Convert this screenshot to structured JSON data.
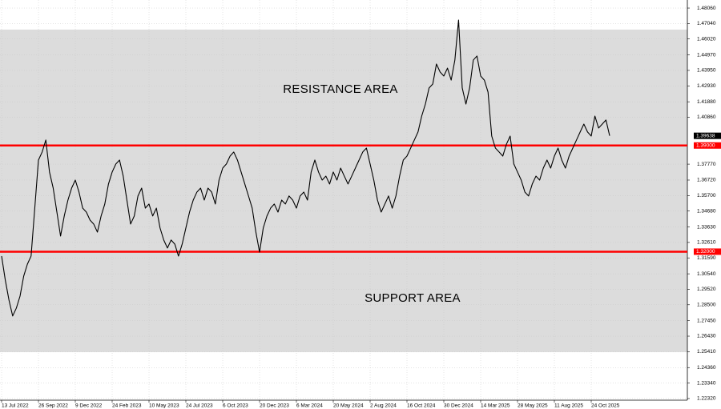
{
  "chart_data": {
    "type": "line",
    "annotations": [
      "RESISTANCE AREA",
      "SUPPORT AREA"
    ],
    "categories": [
      "13 Jul 2022",
      null,
      null,
      null,
      null,
      null,
      null,
      null,
      null,
      null,
      "26 Sep 2022",
      null,
      null,
      null,
      null,
      null,
      null,
      null,
      null,
      null,
      "9 Dec 2022",
      null,
      null,
      null,
      null,
      null,
      null,
      null,
      null,
      null,
      "24 Feb 2023",
      null,
      null,
      null,
      null,
      null,
      null,
      null,
      null,
      null,
      "10 May 2023",
      null,
      null,
      null,
      null,
      null,
      null,
      null,
      null,
      null,
      "24 Jul 2023",
      null,
      null,
      null,
      null,
      null,
      null,
      null,
      null,
      null,
      "6 Oct 2023",
      null,
      null,
      null,
      null,
      null,
      null,
      null,
      null,
      null,
      "20 Dec 2023",
      null,
      null,
      null,
      null,
      null,
      null,
      null,
      null,
      null,
      "6 Mar 2024",
      null,
      null,
      null,
      null,
      null,
      null,
      null,
      null,
      null,
      "20 May 2024",
      null,
      null,
      null,
      null,
      null,
      null,
      null,
      null,
      null,
      "2 Aug 2024",
      null,
      null,
      null,
      null,
      null,
      null,
      null,
      null,
      null,
      "16 Oct 2024",
      null,
      null,
      null,
      null,
      null,
      null,
      null,
      null,
      null,
      "30 Dec 2024",
      null,
      null,
      null,
      null,
      null,
      null,
      null,
      null,
      null,
      "14 Mar 2025",
      null,
      null,
      null,
      null,
      null,
      null,
      null,
      null,
      null,
      "28 May 2025",
      null,
      null,
      null,
      null,
      null,
      null,
      null,
      null,
      null,
      "11 Aug 2025",
      null,
      null,
      null,
      null,
      null,
      null,
      null,
      null,
      null,
      "24 Oct 2025",
      null,
      null,
      null,
      null,
      null
    ],
    "series": [
      {
        "color": "#000000",
        "values": [
          1.3171,
          1.3013,
          1.2881,
          1.2776,
          1.2828,
          1.2907,
          1.3039,
          1.3118,
          1.3171,
          1.3487,
          1.3804,
          1.3857,
          1.3936,
          1.3725,
          1.3619,
          1.3461,
          1.3303,
          1.3435,
          1.354,
          1.3619,
          1.3672,
          1.3593,
          1.3487,
          1.3461,
          1.3408,
          1.3382,
          1.3329,
          1.3435,
          1.3514,
          1.3646,
          1.3725,
          1.3778,
          1.3804,
          1.3698,
          1.354,
          1.3382,
          1.3435,
          1.3567,
          1.3619,
          1.3487,
          1.3514,
          1.3435,
          1.3487,
          1.3356,
          1.3277,
          1.3224,
          1.3277,
          1.325,
          1.3171,
          1.325,
          1.3356,
          1.3461,
          1.354,
          1.3593,
          1.3619,
          1.354,
          1.3619,
          1.3593,
          1.3514,
          1.3672,
          1.3751,
          1.3778,
          1.383,
          1.3857,
          1.3804,
          1.3725,
          1.3646,
          1.3567,
          1.3487,
          1.3329,
          1.3197,
          1.3356,
          1.3435,
          1.3487,
          1.3514,
          1.3461,
          1.354,
          1.3514,
          1.3567,
          1.354,
          1.3487,
          1.3567,
          1.3593,
          1.354,
          1.3725,
          1.3804,
          1.3725,
          1.3672,
          1.3698,
          1.3646,
          1.3725,
          1.3672,
          1.3751,
          1.3698,
          1.3646,
          1.3698,
          1.3751,
          1.3804,
          1.3857,
          1.3883,
          1.3778,
          1.3672,
          1.354,
          1.3461,
          1.3514,
          1.3567,
          1.3487,
          1.3567,
          1.3698,
          1.3804,
          1.383,
          1.3883,
          1.3936,
          1.3989,
          1.4094,
          1.4173,
          1.4279,
          1.4305,
          1.4437,
          1.4384,
          1.4358,
          1.441,
          1.4331,
          1.4463,
          1.4727,
          1.4279,
          1.4173,
          1.4279,
          1.4463,
          1.449,
          1.4358,
          1.4331,
          1.4252,
          1.3962,
          1.3883,
          1.3857,
          1.383,
          1.3909,
          1.3962,
          1.3778,
          1.3725,
          1.3672,
          1.3593,
          1.3567,
          1.3646,
          1.3698,
          1.3672,
          1.3751,
          1.3804,
          1.3751,
          1.383,
          1.3883,
          1.3804,
          1.3751,
          1.383,
          1.3883,
          1.3936,
          1.3989,
          1.4041,
          1.3989,
          1.3962,
          1.4094,
          1.4015,
          1.4041,
          1.4068,
          1.39638
        ]
      }
    ],
    "ylim": [
      1.2221,
      1.4859
    ],
    "yticks": [
      {
        "value": 1.4806,
        "label": "1.48060"
      },
      {
        "value": 1.4704,
        "label": "1.47040"
      },
      {
        "value": 1.4602,
        "label": "1.46020"
      },
      {
        "value": 1.4497,
        "label": "1.44970"
      },
      {
        "value": 1.4395,
        "label": "1.43950"
      },
      {
        "value": 1.4293,
        "label": "1.42930"
      },
      {
        "value": 1.4188,
        "label": "1.41880"
      },
      {
        "value": 1.4086,
        "label": "1.40860"
      },
      {
        "value": 1.3777,
        "label": "1.37770"
      },
      {
        "value": 1.3672,
        "label": "1.36720"
      },
      {
        "value": 1.357,
        "label": "1.35700"
      },
      {
        "value": 1.3468,
        "label": "1.34680"
      },
      {
        "value": 1.3363,
        "label": "1.33630"
      },
      {
        "value": 1.3261,
        "label": "1.32610"
      },
      {
        "value": 1.3159,
        "label": "1.31590"
      },
      {
        "value": 1.3054,
        "label": "1.30540"
      },
      {
        "value": 1.2952,
        "label": "1.29520"
      },
      {
        "value": 1.285,
        "label": "1.28500"
      },
      {
        "value": 1.2745,
        "label": "1.27450"
      },
      {
        "value": 1.2643,
        "label": "1.26430"
      },
      {
        "value": 1.2541,
        "label": "1.25410"
      },
      {
        "value": 1.2436,
        "label": "1.24360"
      },
      {
        "value": 1.2334,
        "label": "1.23340"
      },
      {
        "value": 1.2232,
        "label": "1.22320"
      }
    ],
    "shaded_range": [
      1.2538,
      1.4664
    ],
    "shade_color": "#dcdcdc",
    "hlines": [
      {
        "value": 1.39,
        "label": "1.39000",
        "color": "#ff0000"
      },
      {
        "value": 1.32,
        "label": "1.32000",
        "color": "#ff0000"
      }
    ],
    "last_price": {
      "value": 1.39638,
      "label": "1.39638"
    },
    "grid": true
  }
}
